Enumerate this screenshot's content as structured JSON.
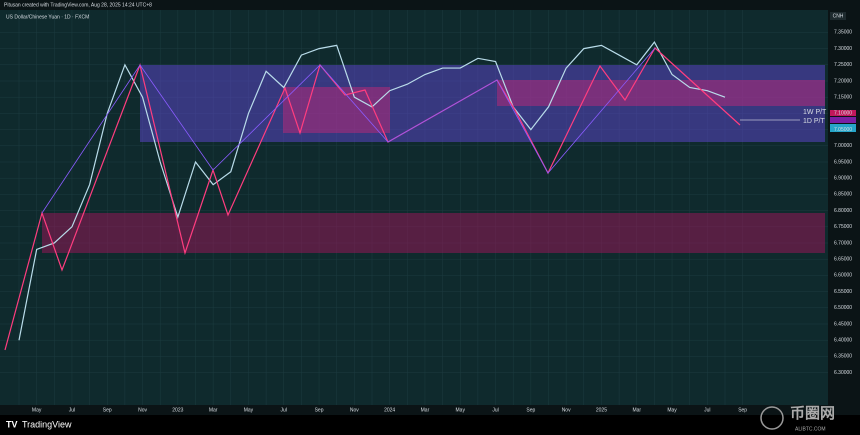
{
  "header": {
    "credit": "Pitusan created with TradingView.com, Aug 28, 2025 14:24 UTC+8",
    "symbol": "US Dollar/Chinese Yuan · 1D · FXCM",
    "currency": "CNH"
  },
  "footer": {
    "brand": "TradingView",
    "watermark": "币圈网",
    "watermark_sub": "ALIBTC.COM"
  },
  "chart_data": {
    "type": "line",
    "annotations": [
      "1W P/T",
      "1D P/T"
    ],
    "categories": [
      null,
      "May",
      null,
      "Jul",
      null,
      "Sep",
      null,
      "Nov",
      null,
      "2023",
      null,
      "Mar",
      null,
      "May",
      null,
      "Jul",
      null,
      "Sep",
      null,
      "Nov",
      null,
      "2024",
      null,
      "Mar",
      null,
      "May",
      null,
      "Jul",
      null,
      "Sep",
      null,
      "Nov",
      null,
      "2025",
      null,
      "Mar",
      null,
      "May",
      null,
      "Jul",
      null,
      "Sep"
    ],
    "series": [
      {
        "name": "US Dollar/Chinese Yuan",
        "color": "#b9dcea",
        "values": [
          6.4,
          6.68,
          6.7,
          6.75,
          6.88,
          7.1,
          7.25,
          7.15,
          6.95,
          6.78,
          6.95,
          6.88,
          6.92,
          7.1,
          7.23,
          7.18,
          7.28,
          7.3,
          7.31,
          7.15,
          7.12,
          7.17,
          7.19,
          7.22,
          7.24,
          7.24,
          7.27,
          7.26,
          7.12,
          7.05,
          7.12,
          7.24,
          7.3,
          7.31,
          7.28,
          7.25,
          7.32,
          7.22,
          7.18,
          7.17,
          7.15,
          null
        ]
      }
    ],
    "ylim": [
      6.2,
      7.45
    ],
    "yticks": [
      {
        "value": 7.35,
        "label": "7.35000"
      },
      {
        "value": 7.3,
        "label": "7.30000"
      },
      {
        "value": 7.25,
        "label": "7.25000"
      },
      {
        "value": 7.2,
        "label": "7.20000"
      },
      {
        "value": 7.15,
        "label": "7.15000"
      },
      {
        "value": 7.1,
        "label": "7.10000"
      },
      {
        "value": 7.05,
        "label": "7.05000"
      },
      {
        "value": 7.0,
        "label": "7.00000"
      },
      {
        "value": 6.95,
        "label": "6.95000"
      },
      {
        "value": 6.9,
        "label": "6.90000"
      },
      {
        "value": 6.85,
        "label": "6.85000"
      },
      {
        "value": 6.8,
        "label": "6.80000"
      },
      {
        "value": 6.75,
        "label": "6.75000"
      },
      {
        "value": 6.7,
        "label": "6.70000"
      },
      {
        "value": 6.65,
        "label": "6.65000"
      },
      {
        "value": 6.6,
        "label": "6.60000"
      },
      {
        "value": 6.55,
        "label": "6.55000"
      },
      {
        "value": 6.5,
        "label": "6.50000"
      },
      {
        "value": 6.45,
        "label": "6.45000"
      },
      {
        "value": 6.4,
        "label": "6.40000"
      },
      {
        "value": 6.35,
        "label": "6.35000"
      },
      {
        "value": 6.3,
        "label": "6.30000"
      }
    ],
    "grid": true
  }
}
